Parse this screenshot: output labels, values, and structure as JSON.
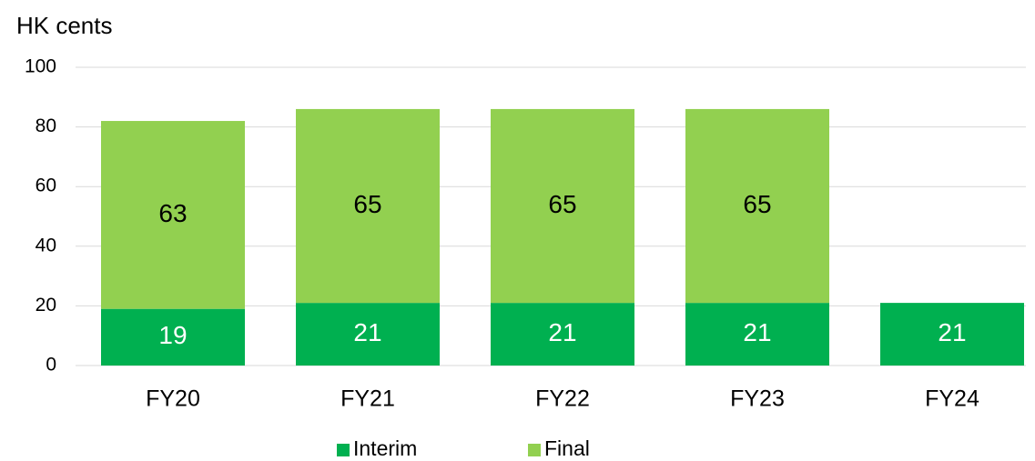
{
  "chart_data": {
    "type": "stacked_bar",
    "y_axis_label": "HK cents",
    "categories": [
      "FY20",
      "FY21",
      "FY22",
      "FY23",
      "FY24"
    ],
    "series": [
      {
        "name": "Interim",
        "color": "#00b050",
        "values": [
          19,
          21,
          21,
          21,
          21
        ]
      },
      {
        "name": "Final",
        "color": "#92d050",
        "values": [
          63,
          65,
          65,
          65,
          null
        ]
      }
    ],
    "ylim": [
      0,
      100
    ],
    "yticks": [
      0,
      20,
      40,
      60,
      80,
      100
    ],
    "grid": true,
    "legend": "bottom"
  }
}
